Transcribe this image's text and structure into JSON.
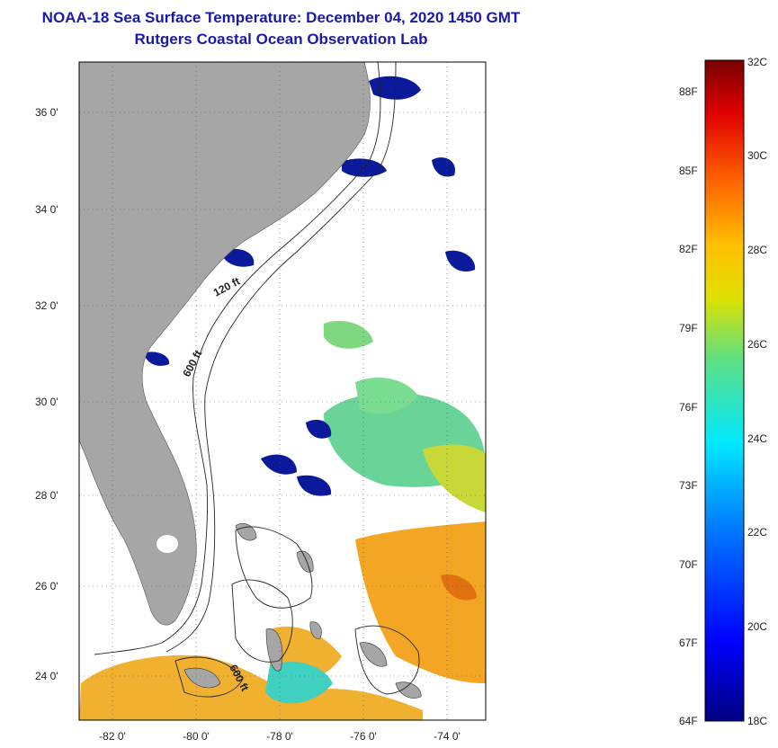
{
  "title_line1": "NOAA-18 Sea Surface Temperature:  December 04, 2020 1450 GMT",
  "title_line2": "Rutgers Coastal Ocean Observation Lab",
  "map": {
    "lat_labels": [
      "36 0'",
      "34 0'",
      "32 0'",
      "30 0'",
      "28 0'",
      "26 0'",
      "24 0'"
    ],
    "lon_labels": [
      "-82 0'",
      "-80 0'",
      "-78 0'",
      "-76 0'",
      "-74 0'"
    ],
    "contour_labels": [
      "120 ft",
      "600 ft",
      "600 ft"
    ],
    "colors": {
      "land": "#a6a6a6",
      "cloud": "#ffffff",
      "cold": "#0a1a9a",
      "warm": "#f0a020"
    }
  },
  "colorbar": {
    "range_c": [
      18,
      32
    ],
    "fahrenheit_labels": [
      "88F",
      "85F",
      "82F",
      "79F",
      "76F",
      "73F",
      "70F",
      "67F",
      "64F"
    ],
    "celsius_labels": [
      "32C",
      "30C",
      "28C",
      "26C",
      "24C",
      "22C",
      "20C",
      "18C"
    ]
  }
}
